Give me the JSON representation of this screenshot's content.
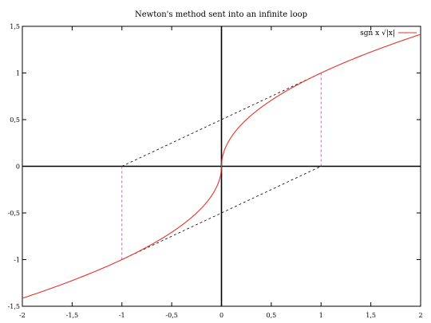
{
  "chart_data": {
    "type": "line",
    "title": "Newton's method sent into an infinite loop",
    "xlabel": "",
    "ylabel": "",
    "xlim": [
      -2,
      2
    ],
    "ylim": [
      -1.5,
      1.5
    ],
    "x_ticks": [
      -2,
      -1.5,
      -1,
      -0.5,
      0,
      0.5,
      1,
      1.5,
      2
    ],
    "x_tick_labels": [
      "-2",
      "-1,5",
      "-1",
      "-0,5",
      "0",
      "0,5",
      "1",
      "1,5",
      "2"
    ],
    "y_ticks": [
      -1.5,
      -1,
      -0.5,
      0,
      0.5,
      1,
      1.5
    ],
    "y_tick_labels": [
      "-1,5",
      "-1",
      "-0,5",
      "0",
      "0,5",
      "1",
      "1,5"
    ],
    "grid": false,
    "legend_position": "top-right",
    "series": [
      {
        "name": "sgn x √|x|",
        "function": "sign(x)*sqrt(abs(x))",
        "color": "#e8332a",
        "style": "solid"
      }
    ],
    "annotations": {
      "tangent_lines": [
        {
          "from": [
            -1,
            0
          ],
          "to": [
            1,
            1
          ],
          "color": "#000000",
          "style": "dashed"
        },
        {
          "from": [
            -1,
            -1
          ],
          "to": [
            1,
            0
          ],
          "color": "#000000",
          "style": "dashed"
        }
      ],
      "vertical_guides": [
        {
          "x": -1,
          "from_y": 0,
          "to_y": -1,
          "color": "#b0469a",
          "style": "dashed"
        },
        {
          "x": 1,
          "from_y": 0,
          "to_y": 1,
          "color": "#b0469a",
          "style": "dashed"
        }
      ]
    }
  }
}
